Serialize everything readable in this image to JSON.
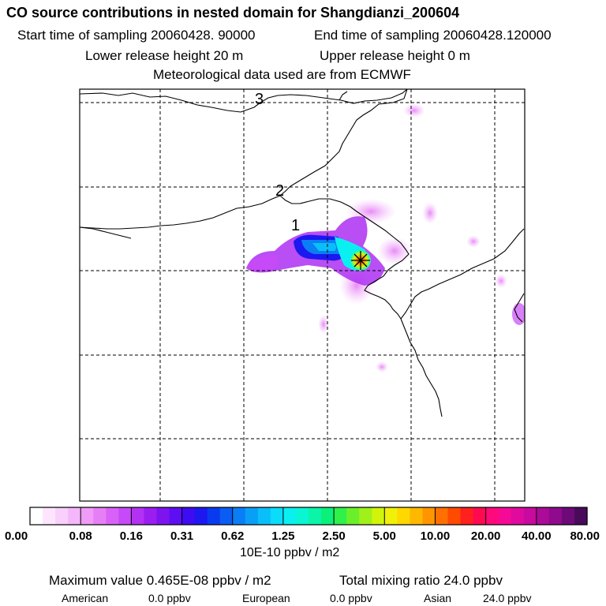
{
  "header": {
    "title": "CO  source contributions in nested domain for Shangdianzi_200604",
    "start_time": "Start time of sampling 20060428. 90000",
    "end_time": "End time of sampling 20060428.120000",
    "lower_height": "Lower release height   20 m",
    "upper_height": "Upper release height    0 m",
    "met_source": "Meteorological data used are from ECMWF"
  },
  "chart_data": {
    "type": "heatmap",
    "title": "CO  source contributions in nested domain for Shangdianzi_200604",
    "map_labels": [
      "3",
      "2",
      "1"
    ],
    "receptor_marker": "star",
    "colorbar": {
      "tick_labels": [
        "0.00",
        "0.08",
        "0.16",
        "0.31",
        "0.62",
        "1.25",
        "2.50",
        "5.00",
        "10.00",
        "20.00",
        "40.00",
        "80.00"
      ],
      "units": "10E-10 ppbv / m2",
      "colors": [
        "#ffffff",
        "#fde6fd",
        "#f9d0fb",
        "#f4b8fa",
        "#ef9bf7",
        "#e67ff6",
        "#d862f7",
        "#c64af7",
        "#b331f3",
        "#9a1ef0",
        "#7d14f0",
        "#5e0ef2",
        "#3d0cf2",
        "#1b18f0",
        "#0a3af0",
        "#0a5cf2",
        "#0a7ef5",
        "#0a9ff7",
        "#0abff9",
        "#0adcfa",
        "#0af0f0",
        "#0af5d2",
        "#0af5a8",
        "#0af07a",
        "#30f04a",
        "#6af02a",
        "#a0f01a",
        "#d0f50a",
        "#f0f00a",
        "#ffd800",
        "#ffb800",
        "#ff9600",
        "#ff7000",
        "#ff4a00",
        "#ff2020",
        "#ff0a50",
        "#ff0a7a",
        "#f50a95",
        "#e00a9e",
        "#c80a9e",
        "#ac0a98",
        "#8f0a8c",
        "#6e0a78",
        "#4a0a5a"
      ],
      "segments_per_decade": 4
    },
    "plume": [
      {
        "kind": "core",
        "level": 0.6
      },
      {
        "kind": "receptor",
        "level": 1.0
      }
    ]
  },
  "stats": {
    "max_label": "Maximum value  0.465E-08 ppbv / m2",
    "total_label": "Total mixing ratio      24.0 ppbv",
    "american_label": "American",
    "american_value": "0.0 ppbv",
    "european_label": "European",
    "european_value": "0.0 ppbv",
    "asian_label": "Asian",
    "asian_value": "24.0 ppbv"
  }
}
